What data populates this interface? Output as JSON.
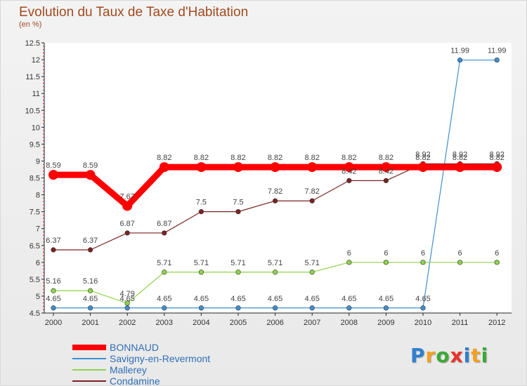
{
  "title": "Evolution du Taux de Taxe d'Habitation",
  "unit": "(en %)",
  "logo": "Proxiti",
  "chart_data": {
    "type": "line",
    "title": "Evolution du Taux de Taxe d'Habitation",
    "ylabel": "(en %)",
    "xlabel": "",
    "ylim": [
      4.5,
      12.5
    ],
    "yticks": [
      "4.5",
      "5",
      "5.5",
      "6",
      "6.5",
      "7",
      "7.5",
      "8",
      "8.5",
      "9",
      "9.5",
      "10",
      "10.5",
      "11",
      "11.5",
      "12",
      "12.5"
    ],
    "x": [
      "2000",
      "2001",
      "2002",
      "2003",
      "2004",
      "2005",
      "2006",
      "2007",
      "2008",
      "2009",
      "2010",
      "2011",
      "2012"
    ],
    "grid": false,
    "legend": "bottom-left",
    "series": [
      {
        "name": "BONNAUD",
        "color": "#ff0000",
        "values": [
          8.59,
          8.59,
          7.67,
          8.82,
          8.82,
          8.82,
          8.82,
          8.82,
          8.82,
          8.82,
          8.82,
          8.82,
          8.82
        ],
        "labels": [
          "8.59",
          "8.59",
          "7.67",
          "8.82",
          "8.82",
          "8.82",
          "8.82",
          "8.82",
          "8.82",
          "8.82",
          "8.82",
          "8.82",
          "8.82"
        ]
      },
      {
        "name": "Savigny-en-Revermont",
        "color": "#3f8fcf",
        "values": [
          4.65,
          4.65,
          4.65,
          4.65,
          4.65,
          4.65,
          4.65,
          4.65,
          4.65,
          4.65,
          4.65,
          11.99,
          11.99
        ],
        "labels": [
          "4.65",
          "4.65",
          "4.65",
          "4.65",
          "4.65",
          "4.65",
          "4.65",
          "4.65",
          "4.65",
          "4.65",
          "4.65",
          "11.99",
          "11.99"
        ]
      },
      {
        "name": "Mallerey",
        "color": "#8fd44a",
        "values": [
          5.16,
          5.16,
          4.79,
          5.71,
          5.71,
          5.71,
          5.71,
          5.71,
          6,
          6,
          6,
          6,
          6
        ],
        "labels": [
          "5.16",
          "5.16",
          "4.79",
          "5.71",
          "5.71",
          "5.71",
          "5.71",
          "5.71",
          "6",
          "6",
          "6",
          "6",
          "6"
        ]
      },
      {
        "name": "Condamine",
        "color": "#7a2222",
        "values": [
          6.37,
          6.37,
          6.87,
          6.87,
          7.5,
          7.5,
          7.82,
          7.82,
          8.42,
          8.42,
          8.92,
          8.92,
          8.92
        ],
        "labels": [
          "6.37",
          "6.37",
          "6.87",
          "6.87",
          "7.5",
          "7.5",
          "7.82",
          "7.82",
          "8.42",
          "8.42",
          "8.92",
          "8.92",
          "8.92"
        ]
      }
    ]
  }
}
